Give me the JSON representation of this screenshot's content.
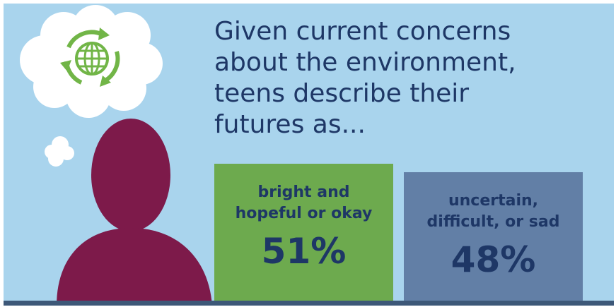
{
  "headline": {
    "lines": [
      "Given current concerns",
      "about the environment,",
      "teens describe their",
      "futures as..."
    ]
  },
  "icons": {
    "thought_bubble": "cloud-thought-bubble-icon",
    "globe": "recycling-globe-icon",
    "person": "person-silhouette-icon"
  },
  "colors": {
    "background": "#a9d4ed",
    "person": "#7d1a4a",
    "bar_hopeful": "#6daa4e",
    "bar_uncertain": "#627fa6",
    "text": "#1e3766",
    "baseline": "#3d5878",
    "globe": "#71b547"
  },
  "chart_data": {
    "type": "bar",
    "title": "Given current concerns about the environment, teens describe their futures as...",
    "categories": [
      "bright and hopeful or okay",
      "uncertain, difficult, or sad"
    ],
    "category_lines": [
      [
        "bright and",
        "hopeful or okay"
      ],
      [
        "uncertain,",
        "difficult, or sad"
      ]
    ],
    "values": [
      51,
      48
    ],
    "value_labels": [
      "51%",
      "48%"
    ],
    "unit": "%",
    "grid": false,
    "legend": "none"
  }
}
